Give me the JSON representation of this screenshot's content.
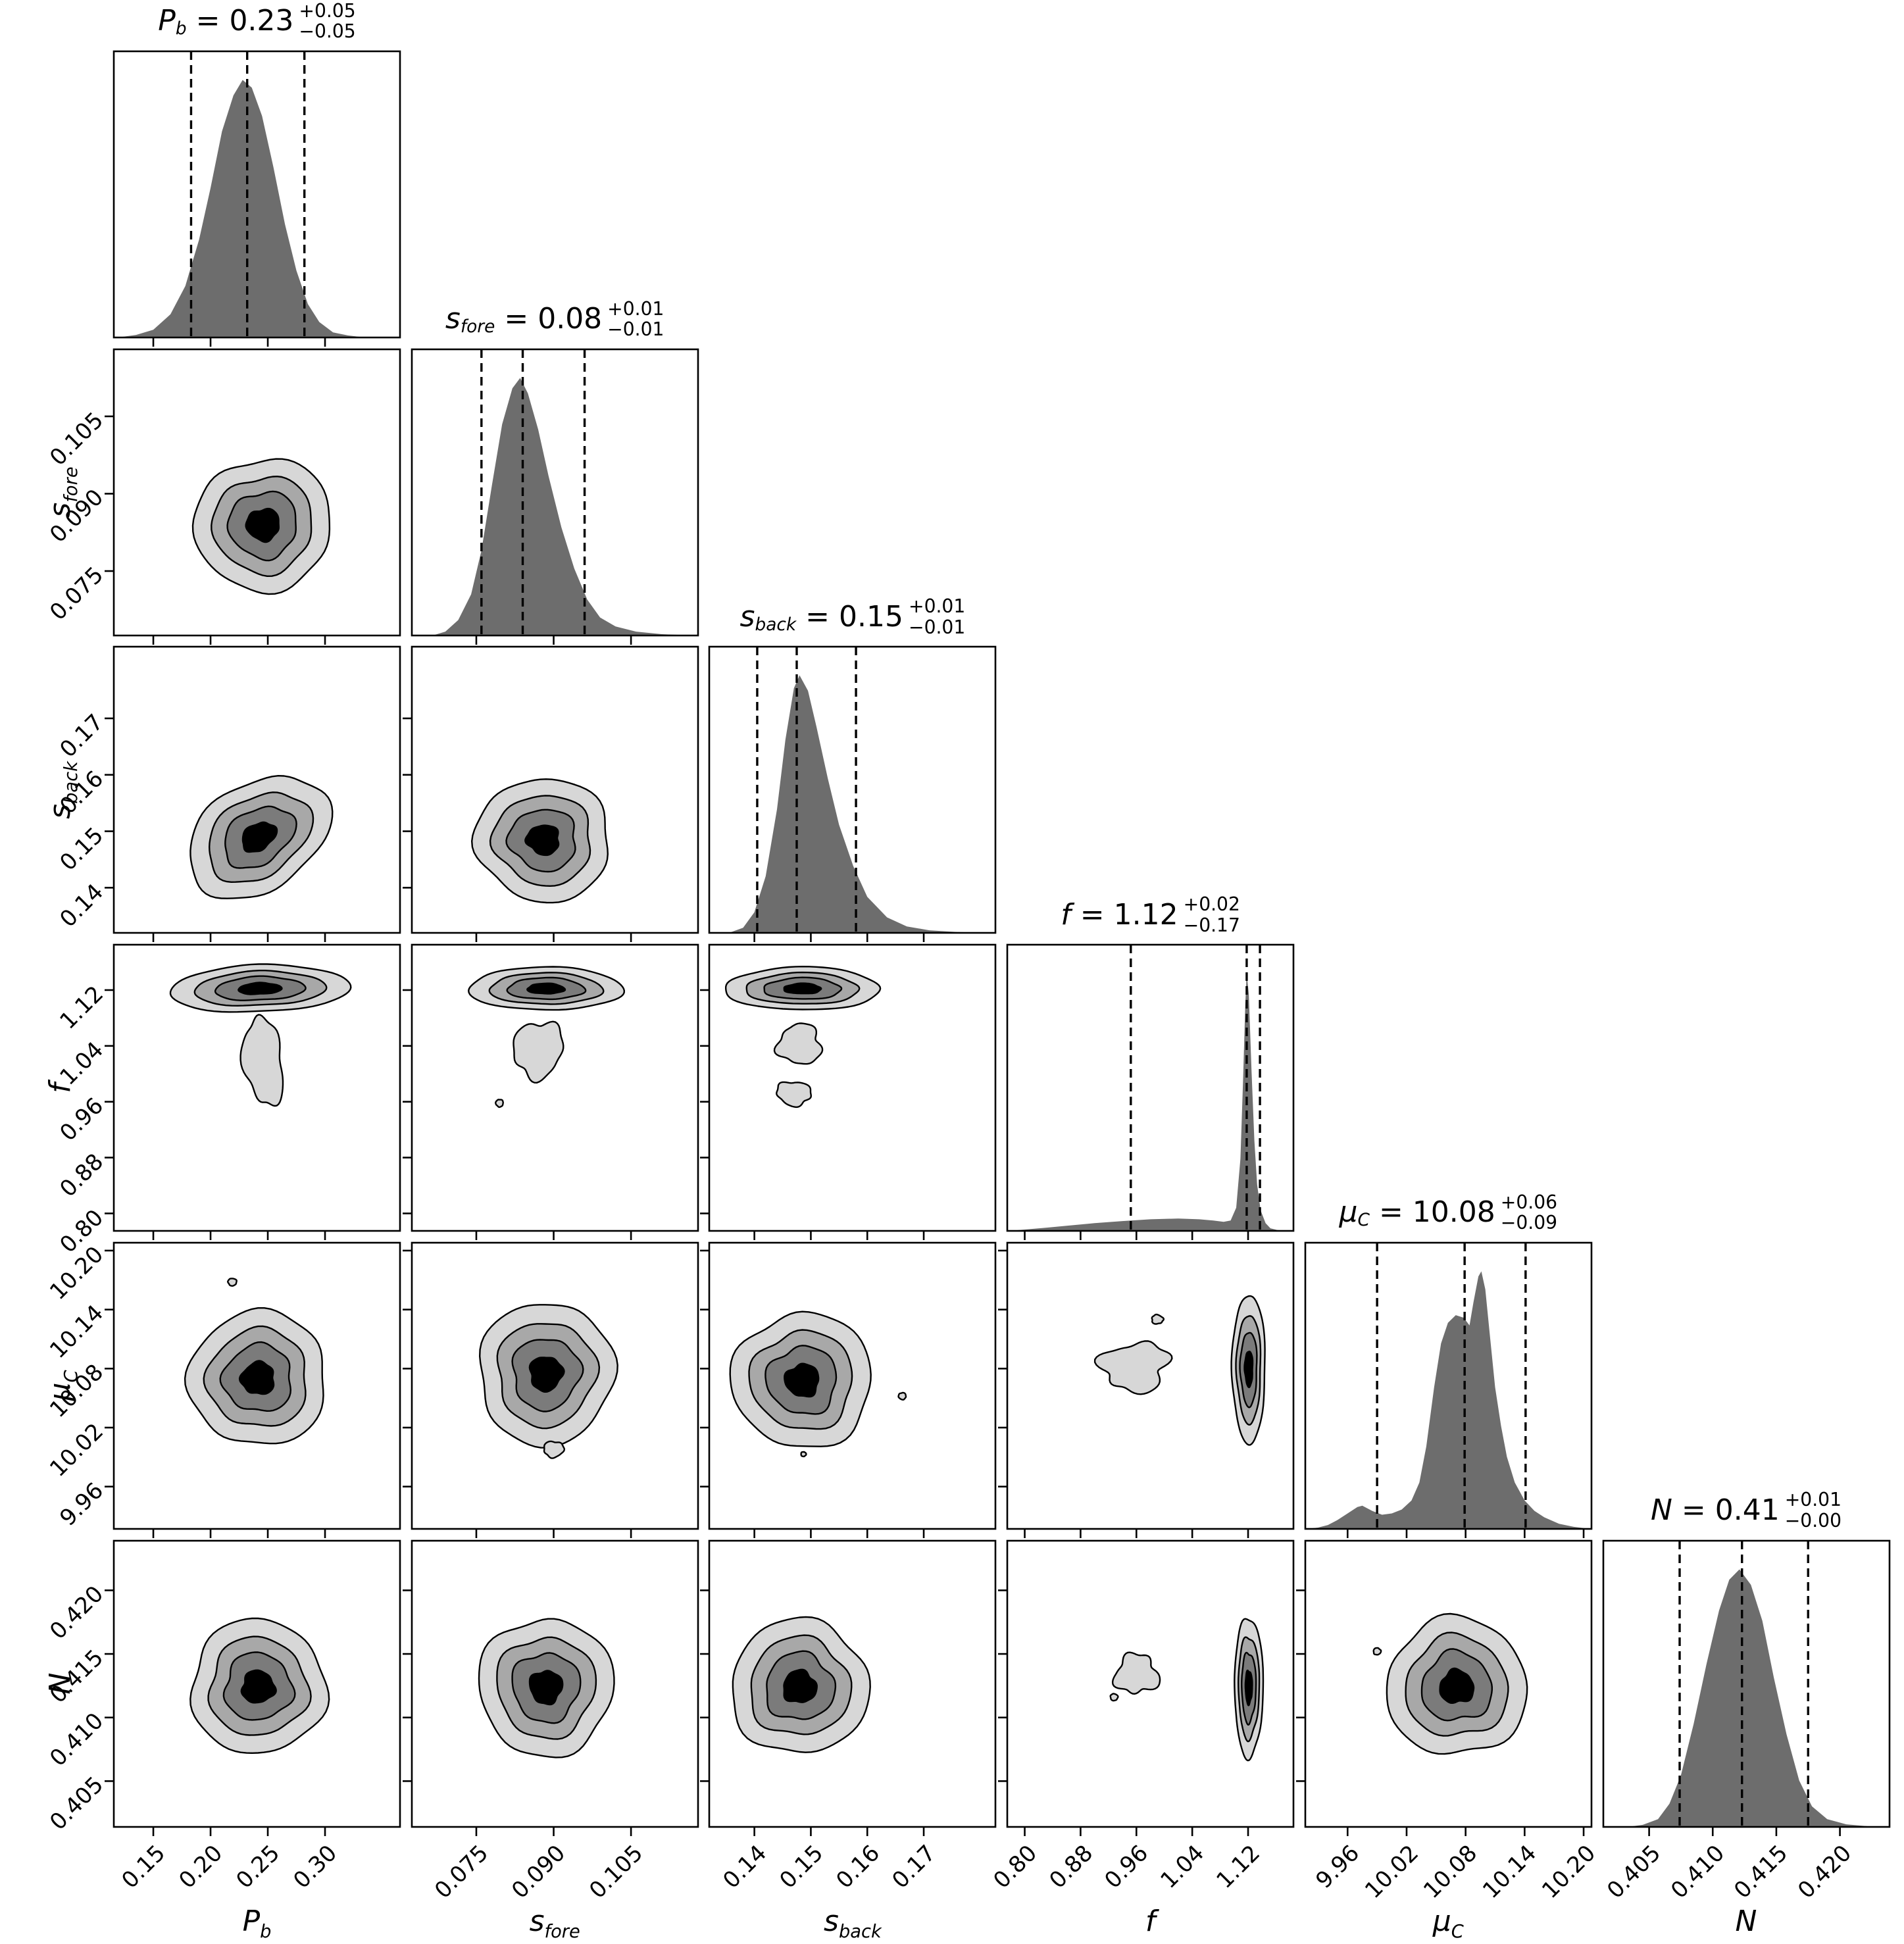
{
  "chart_data": {
    "type": "corner",
    "description": "Corner plot of pairwise posterior distributions for 6 fitted parameters: diagonal panels are 1D marginal histograms with dashed 16th/50th/84th percentile lines; off-diagonal panels are 2D density contours (4 grayscale levels).",
    "background": "#ffffff",
    "style": {
      "hist_fill": "#6d6d6d",
      "contour_fills": [
        "#d7d7d7",
        "#a8a8a8",
        "#7b7b7b",
        "#000000"
      ],
      "line_color": "#000000"
    },
    "parameters": [
      {
        "id": "P_b",
        "name_main": "P",
        "name_sub": "b",
        "title": {
          "name_main": "P",
          "name_sub": "b",
          "eq": " = 0.23",
          "plus": "+0.05",
          "minus": "−0.05"
        },
        "range": [
          0.1155,
          0.3655
        ],
        "ticks": [
          "0.15",
          "0.20",
          "0.25",
          "0.30"
        ],
        "quantiles": [
          0.183,
          0.232,
          0.282
        ],
        "hist": [
          [
            0.119,
            0
          ],
          [
            0.135,
            0.01
          ],
          [
            0.15,
            0.03
          ],
          [
            0.165,
            0.09
          ],
          [
            0.178,
            0.2
          ],
          [
            0.19,
            0.38
          ],
          [
            0.2,
            0.58
          ],
          [
            0.21,
            0.8
          ],
          [
            0.22,
            0.94
          ],
          [
            0.228,
            1.0
          ],
          [
            0.236,
            0.97
          ],
          [
            0.245,
            0.86
          ],
          [
            0.255,
            0.66
          ],
          [
            0.265,
            0.44
          ],
          [
            0.275,
            0.26
          ],
          [
            0.285,
            0.13
          ],
          [
            0.295,
            0.06
          ],
          [
            0.307,
            0.02
          ],
          [
            0.32,
            0.008
          ],
          [
            0.335,
            0
          ]
        ]
      },
      {
        "id": "s_fore",
        "name_main": "s",
        "name_sub": "fore",
        "title": {
          "name_main": "s",
          "name_sub": "fore",
          "eq": " = 0.08",
          "plus": "+0.01",
          "minus": "−0.01"
        },
        "range": [
          0.0625,
          0.118
        ],
        "ticks": [
          "0.075",
          "0.090",
          "0.105"
        ],
        "quantiles": [
          0.076,
          0.084,
          0.096
        ],
        "hist": [
          [
            0.0665,
            0
          ],
          [
            0.069,
            0.015
          ],
          [
            0.0715,
            0.06
          ],
          [
            0.074,
            0.16
          ],
          [
            0.076,
            0.33
          ],
          [
            0.078,
            0.58
          ],
          [
            0.08,
            0.82
          ],
          [
            0.082,
            0.96
          ],
          [
            0.0835,
            1.0
          ],
          [
            0.085,
            0.94
          ],
          [
            0.087,
            0.8
          ],
          [
            0.089,
            0.62
          ],
          [
            0.0915,
            0.42
          ],
          [
            0.094,
            0.26
          ],
          [
            0.0965,
            0.14
          ],
          [
            0.099,
            0.07
          ],
          [
            0.102,
            0.035
          ],
          [
            0.106,
            0.015
          ],
          [
            0.111,
            0.005
          ],
          [
            0.117,
            0
          ]
        ]
      },
      {
        "id": "s_back",
        "name_main": "s",
        "name_sub": "back",
        "title": {
          "name_main": "s",
          "name_sub": "back",
          "eq": " = 0.15",
          "plus": "+0.01",
          "minus": "−0.01"
        },
        "range": [
          0.132,
          0.1827
        ],
        "ticks": [
          "0.14",
          "0.15",
          "0.16",
          "0.17"
        ],
        "quantiles": [
          0.1405,
          0.1475,
          0.158
        ],
        "hist": [
          [
            0.1355,
            0
          ],
          [
            0.138,
            0.02
          ],
          [
            0.14,
            0.08
          ],
          [
            0.142,
            0.22
          ],
          [
            0.144,
            0.48
          ],
          [
            0.1455,
            0.75
          ],
          [
            0.147,
            0.95
          ],
          [
            0.148,
            1.0
          ],
          [
            0.1495,
            0.94
          ],
          [
            0.151,
            0.8
          ],
          [
            0.153,
            0.6
          ],
          [
            0.155,
            0.42
          ],
          [
            0.1575,
            0.26
          ],
          [
            0.16,
            0.14
          ],
          [
            0.1635,
            0.06
          ],
          [
            0.167,
            0.025
          ],
          [
            0.171,
            0.01
          ],
          [
            0.176,
            0.003
          ],
          [
            0.182,
            0
          ]
        ]
      },
      {
        "id": "f",
        "name_main": "f",
        "name_sub": "",
        "title": {
          "name_main": "f",
          "name_sub": "",
          "eq": " = 1.12",
          "plus": "+0.02",
          "minus": "−0.17"
        },
        "range": [
          0.775,
          1.185
        ],
        "ticks": [
          "0.80",
          "0.88",
          "0.96",
          "1.04",
          "1.12"
        ],
        "quantiles": [
          0.952,
          1.118,
          1.137
        ],
        "hist": [
          [
            0.778,
            0
          ],
          [
            0.8,
            0.005
          ],
          [
            0.83,
            0.012
          ],
          [
            0.86,
            0.02
          ],
          [
            0.9,
            0.03
          ],
          [
            0.94,
            0.038
          ],
          [
            0.98,
            0.045
          ],
          [
            1.02,
            0.048
          ],
          [
            1.05,
            0.045
          ],
          [
            1.07,
            0.04
          ],
          [
            1.085,
            0.035
          ],
          [
            1.095,
            0.04
          ],
          [
            1.103,
            0.09
          ],
          [
            1.109,
            0.28
          ],
          [
            1.113,
            0.6
          ],
          [
            1.116,
            0.88
          ],
          [
            1.118,
            1.0
          ],
          [
            1.121,
            0.92
          ],
          [
            1.125,
            0.62
          ],
          [
            1.129,
            0.35
          ],
          [
            1.133,
            0.18
          ],
          [
            1.138,
            0.08
          ],
          [
            1.145,
            0.03
          ],
          [
            1.152,
            0.01
          ],
          [
            1.162,
            0.003
          ],
          [
            1.18,
            0
          ]
        ]
      },
      {
        "id": "mu_C",
        "name_main": "μ",
        "name_sub": "C",
        "title": {
          "name_main": "μ",
          "name_sub": "C",
          "eq": " = 10.08",
          "plus": "+0.06",
          "minus": "−0.09"
        },
        "range": [
          9.917,
          10.208
        ],
        "ticks": [
          "9.96",
          "10.02",
          "10.08",
          "10.14",
          "10.20"
        ],
        "quantiles": [
          9.99,
          10.079,
          10.141
        ],
        "hist": [
          [
            9.918,
            0
          ],
          [
            9.93,
            0.005
          ],
          [
            9.94,
            0.015
          ],
          [
            9.95,
            0.035
          ],
          [
            9.96,
            0.06
          ],
          [
            9.97,
            0.085
          ],
          [
            9.975,
            0.09
          ],
          [
            9.985,
            0.07
          ],
          [
            9.995,
            0.055
          ],
          [
            10.005,
            0.06
          ],
          [
            10.015,
            0.075
          ],
          [
            10.025,
            0.11
          ],
          [
            10.033,
            0.18
          ],
          [
            10.04,
            0.32
          ],
          [
            10.048,
            0.55
          ],
          [
            10.055,
            0.72
          ],
          [
            10.062,
            0.8
          ],
          [
            10.07,
            0.83
          ],
          [
            10.078,
            0.82
          ],
          [
            10.084,
            0.79
          ],
          [
            10.088,
            0.88
          ],
          [
            10.093,
            0.98
          ],
          [
            10.096,
            1.0
          ],
          [
            10.1,
            0.93
          ],
          [
            10.105,
            0.74
          ],
          [
            10.11,
            0.55
          ],
          [
            10.116,
            0.4
          ],
          [
            10.122,
            0.28
          ],
          [
            10.13,
            0.18
          ],
          [
            10.14,
            0.11
          ],
          [
            10.15,
            0.07
          ],
          [
            10.16,
            0.045
          ],
          [
            10.175,
            0.02
          ],
          [
            10.19,
            0.008
          ],
          [
            10.207,
            0
          ]
        ]
      },
      {
        "id": "N",
        "name_main": "N",
        "name_sub": "",
        "title": {
          "name_main": "N",
          "name_sub": "",
          "eq": " = 0.41",
          "plus": "+0.01",
          "minus": "−0.00"
        },
        "range": [
          0.4014,
          0.4239
        ],
        "ticks": [
          "0.405",
          "0.410",
          "0.415",
          "0.420"
        ],
        "quantiles": [
          0.4074,
          0.4123,
          0.4175
        ],
        "hist": [
          [
            0.4033,
            0
          ],
          [
            0.4045,
            0.008
          ],
          [
            0.4057,
            0.03
          ],
          [
            0.4066,
            0.09
          ],
          [
            0.4075,
            0.2
          ],
          [
            0.4085,
            0.4
          ],
          [
            0.4095,
            0.63
          ],
          [
            0.4105,
            0.84
          ],
          [
            0.4113,
            0.96
          ],
          [
            0.4121,
            1.0
          ],
          [
            0.413,
            0.94
          ],
          [
            0.4139,
            0.8
          ],
          [
            0.4148,
            0.58
          ],
          [
            0.4158,
            0.36
          ],
          [
            0.4168,
            0.18
          ],
          [
            0.4178,
            0.08
          ],
          [
            0.419,
            0.03
          ],
          [
            0.4205,
            0.01
          ],
          [
            0.4228,
            0
          ]
        ]
      }
    ],
    "panels_2d": [
      {
        "row": 1,
        "col": 0,
        "blobs": [
          {
            "cx": 0.246,
            "cy": 0.084,
            "rx": 0.24,
            "ry": 0.23,
            "rot": -20,
            "levels": 4,
            "w": 0.07,
            "seed": 3
          }
        ]
      },
      {
        "row": 2,
        "col": 0,
        "blobs": [
          {
            "cx": 0.242,
            "cy": 0.149,
            "rx": 0.27,
            "ry": 0.185,
            "rot": -33,
            "levels": 4,
            "w": 0.07,
            "seed": 7
          }
        ]
      },
      {
        "row": 2,
        "col": 1,
        "blobs": [
          {
            "cx": 0.088,
            "cy": 0.1485,
            "rx": 0.235,
            "ry": 0.215,
            "rot": 8,
            "levels": 4,
            "w": 0.08,
            "seed": 11
          }
        ]
      },
      {
        "row": 3,
        "col": 0,
        "blobs": [
          {
            "cx": 0.243,
            "cy": 1.122,
            "rx": 0.315,
            "ry": 0.082,
            "rot": -2,
            "levels": 4,
            "w": 0.05,
            "seed": 13
          },
          {
            "cx": 0.246,
            "cy": 1.018,
            "rx": 0.068,
            "ry": 0.155,
            "rot": -8,
            "levels": 1,
            "w": 0.18,
            "seed": 17
          }
        ]
      },
      {
        "row": 3,
        "col": 1,
        "blobs": [
          {
            "cx": 0.0885,
            "cy": 1.122,
            "rx": 0.27,
            "ry": 0.075,
            "rot": 0,
            "levels": 4,
            "w": 0.05,
            "seed": 19
          },
          {
            "cx": 0.087,
            "cy": 1.035,
            "rx": 0.085,
            "ry": 0.1,
            "rot": 15,
            "levels": 1,
            "w": 0.2,
            "seed": 23
          },
          {
            "cx": 0.0795,
            "cy": 0.958,
            "rx": 0.013,
            "ry": 0.013,
            "rot": 0,
            "levels": 1,
            "w": 0.1,
            "seed": 29
          }
        ]
      },
      {
        "row": 3,
        "col": 2,
        "blobs": [
          {
            "cx": 0.1485,
            "cy": 1.122,
            "rx": 0.27,
            "ry": 0.075,
            "rot": 0,
            "levels": 4,
            "w": 0.05,
            "seed": 31
          },
          {
            "cx": 0.148,
            "cy": 1.042,
            "rx": 0.075,
            "ry": 0.07,
            "rot": 0,
            "levels": 1,
            "w": 0.22,
            "seed": 37
          },
          {
            "cx": 0.147,
            "cy": 0.972,
            "rx": 0.06,
            "ry": 0.042,
            "rot": 5,
            "levels": 1,
            "w": 0.18,
            "seed": 41
          }
        ]
      },
      {
        "row": 4,
        "col": 0,
        "blobs": [
          {
            "cx": 0.2415,
            "cy": 10.07,
            "rx": 0.24,
            "ry": 0.235,
            "rot": 0,
            "levels": 4,
            "w": 0.08,
            "seed": 43
          },
          {
            "cx": 0.219,
            "cy": 10.168,
            "rx": 0.015,
            "ry": 0.013,
            "rot": 0,
            "levels": 1,
            "w": 0.1,
            "seed": 47
          }
        ]
      },
      {
        "row": 4,
        "col": 1,
        "blobs": [
          {
            "cx": 0.0885,
            "cy": 10.075,
            "rx": 0.235,
            "ry": 0.25,
            "rot": 4,
            "levels": 4,
            "w": 0.08,
            "seed": 53
          },
          {
            "cx": 0.09,
            "cy": 9.998,
            "rx": 0.035,
            "ry": 0.028,
            "rot": 0,
            "levels": 1,
            "w": 0.15,
            "seed": 59
          }
        ]
      },
      {
        "row": 4,
        "col": 2,
        "blobs": [
          {
            "cx": 0.1485,
            "cy": 10.068,
            "rx": 0.245,
            "ry": 0.235,
            "rot": 0,
            "levels": 4,
            "w": 0.08,
            "seed": 61
          },
          {
            "cx": 0.1662,
            "cy": 10.052,
            "rx": 0.013,
            "ry": 0.012,
            "rot": 0,
            "levels": 1,
            "w": 0.1,
            "seed": 67
          },
          {
            "cx": 0.1487,
            "cy": 9.993,
            "rx": 0.009,
            "ry": 0.008,
            "rot": 0,
            "levels": 1,
            "w": 0.1,
            "seed": 71
          }
        ]
      },
      {
        "row": 4,
        "col": 3,
        "blobs": [
          {
            "cx": 1.121,
            "cy": 10.08,
            "rx": 0.058,
            "ry": 0.26,
            "rot": 0,
            "levels": 4,
            "w": 0.06,
            "seed": 73
          },
          {
            "cx": 0.958,
            "cy": 10.082,
            "rx": 0.115,
            "ry": 0.085,
            "rot": -5,
            "levels": 1,
            "w": 0.3,
            "seed": 79
          },
          {
            "cx": 0.99,
            "cy": 10.13,
            "rx": 0.02,
            "ry": 0.016,
            "rot": 0,
            "levels": 1,
            "w": 0.15,
            "seed": 83
          }
        ]
      },
      {
        "row": 5,
        "col": 0,
        "blobs": [
          {
            "cx": 0.2415,
            "cy": 0.4124,
            "rx": 0.235,
            "ry": 0.235,
            "rot": 5,
            "levels": 4,
            "w": 0.08,
            "seed": 89
          }
        ]
      },
      {
        "row": 5,
        "col": 1,
        "blobs": [
          {
            "cx": 0.0885,
            "cy": 0.4124,
            "rx": 0.235,
            "ry": 0.24,
            "rot": -8,
            "levels": 4,
            "w": 0.08,
            "seed": 97
          }
        ]
      },
      {
        "row": 5,
        "col": 2,
        "blobs": [
          {
            "cx": 0.148,
            "cy": 0.4124,
            "rx": 0.24,
            "ry": 0.235,
            "rot": 0,
            "levels": 4,
            "w": 0.08,
            "seed": 101
          }
        ]
      },
      {
        "row": 5,
        "col": 3,
        "blobs": [
          {
            "cx": 1.121,
            "cy": 0.4124,
            "rx": 0.05,
            "ry": 0.245,
            "rot": 0,
            "levels": 4,
            "w": 0.06,
            "seed": 103
          },
          {
            "cx": 0.96,
            "cy": 0.4134,
            "rx": 0.075,
            "ry": 0.068,
            "rot": 0,
            "levels": 1,
            "w": 0.28,
            "seed": 107
          },
          {
            "cx": 0.928,
            "cy": 0.4116,
            "rx": 0.013,
            "ry": 0.012,
            "rot": 0,
            "levels": 1,
            "w": 0.1,
            "seed": 109
          }
        ]
      },
      {
        "row": 5,
        "col": 4,
        "blobs": [
          {
            "cx": 10.071,
            "cy": 0.4124,
            "rx": 0.245,
            "ry": 0.24,
            "rot": -5,
            "levels": 4,
            "w": 0.08,
            "seed": 113
          },
          {
            "cx": 9.99,
            "cy": 0.4152,
            "rx": 0.013,
            "ry": 0.012,
            "rot": 0,
            "levels": 1,
            "w": 0.1,
            "seed": 127
          }
        ]
      }
    ]
  }
}
